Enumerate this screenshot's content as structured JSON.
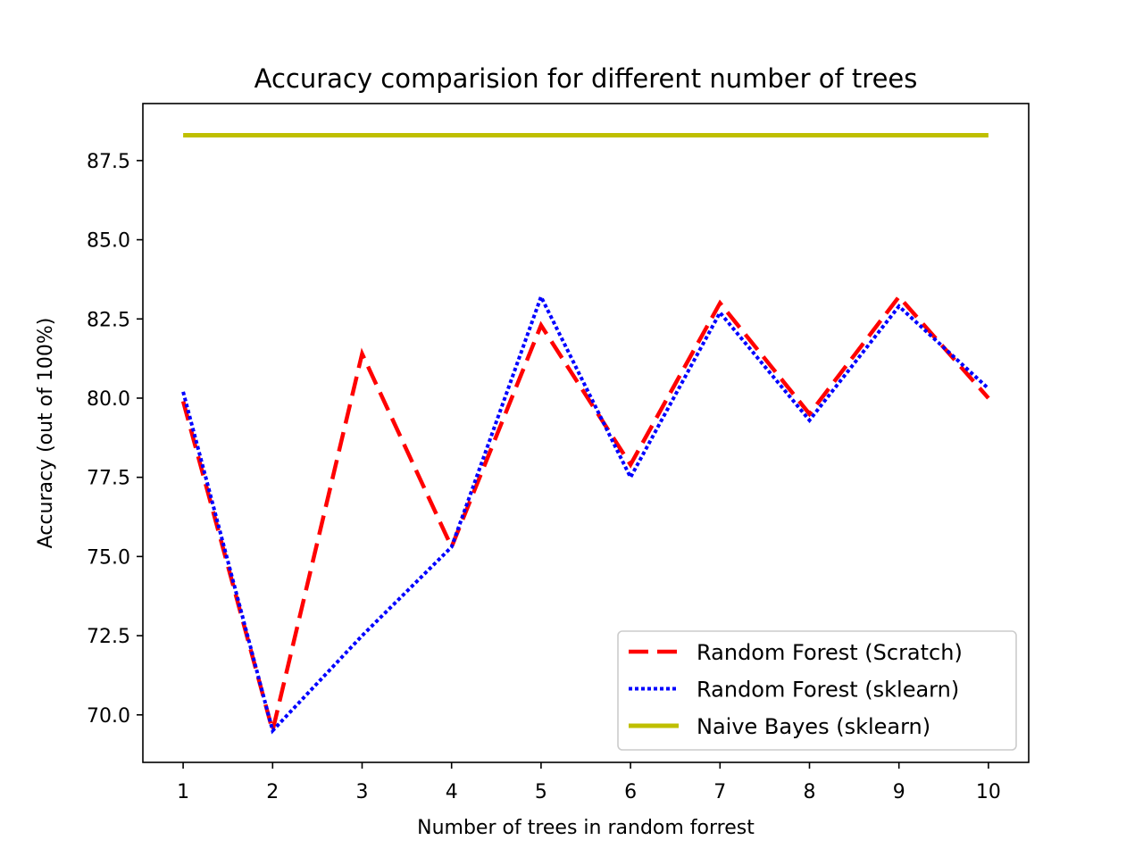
{
  "chart_data": {
    "type": "line",
    "title": "Accuracy comparision for different number of trees",
    "xlabel": "Number of trees in random forrest",
    "ylabel": "Accuracy (out of 100%)",
    "x": [
      1,
      2,
      3,
      4,
      5,
      6,
      7,
      8,
      9,
      10
    ],
    "x_tick_labels": [
      "1",
      "2",
      "3",
      "4",
      "5",
      "6",
      "7",
      "8",
      "9",
      "10"
    ],
    "y_ticks": [
      70.0,
      72.5,
      75.0,
      77.5,
      80.0,
      82.5,
      85.0,
      87.5
    ],
    "y_tick_labels": [
      "70.0",
      "72.5",
      "75.0",
      "77.5",
      "80.0",
      "82.5",
      "85.0",
      "87.5"
    ],
    "xlim": [
      0.55,
      10.45
    ],
    "ylim": [
      68.5,
      89.3
    ],
    "grid": false,
    "legend_position": "lower-right",
    "series": [
      {
        "name": "Random Forest (Scratch)",
        "values": [
          79.9,
          69.5,
          81.4,
          75.3,
          82.3,
          77.9,
          83.0,
          79.5,
          83.2,
          80.0
        ],
        "color": "#ff0000",
        "style": "dashed"
      },
      {
        "name": "Random Forest (sklearn)",
        "values": [
          80.2,
          69.5,
          72.5,
          75.3,
          83.2,
          77.5,
          82.7,
          79.3,
          82.9,
          80.3
        ],
        "color": "#0000ff",
        "style": "dotted"
      },
      {
        "name": "Naive Bayes (sklearn)",
        "values": [
          88.3,
          88.3,
          88.3,
          88.3,
          88.3,
          88.3,
          88.3,
          88.3,
          88.3,
          88.3
        ],
        "color": "#bfbf00",
        "style": "solid"
      }
    ]
  }
}
